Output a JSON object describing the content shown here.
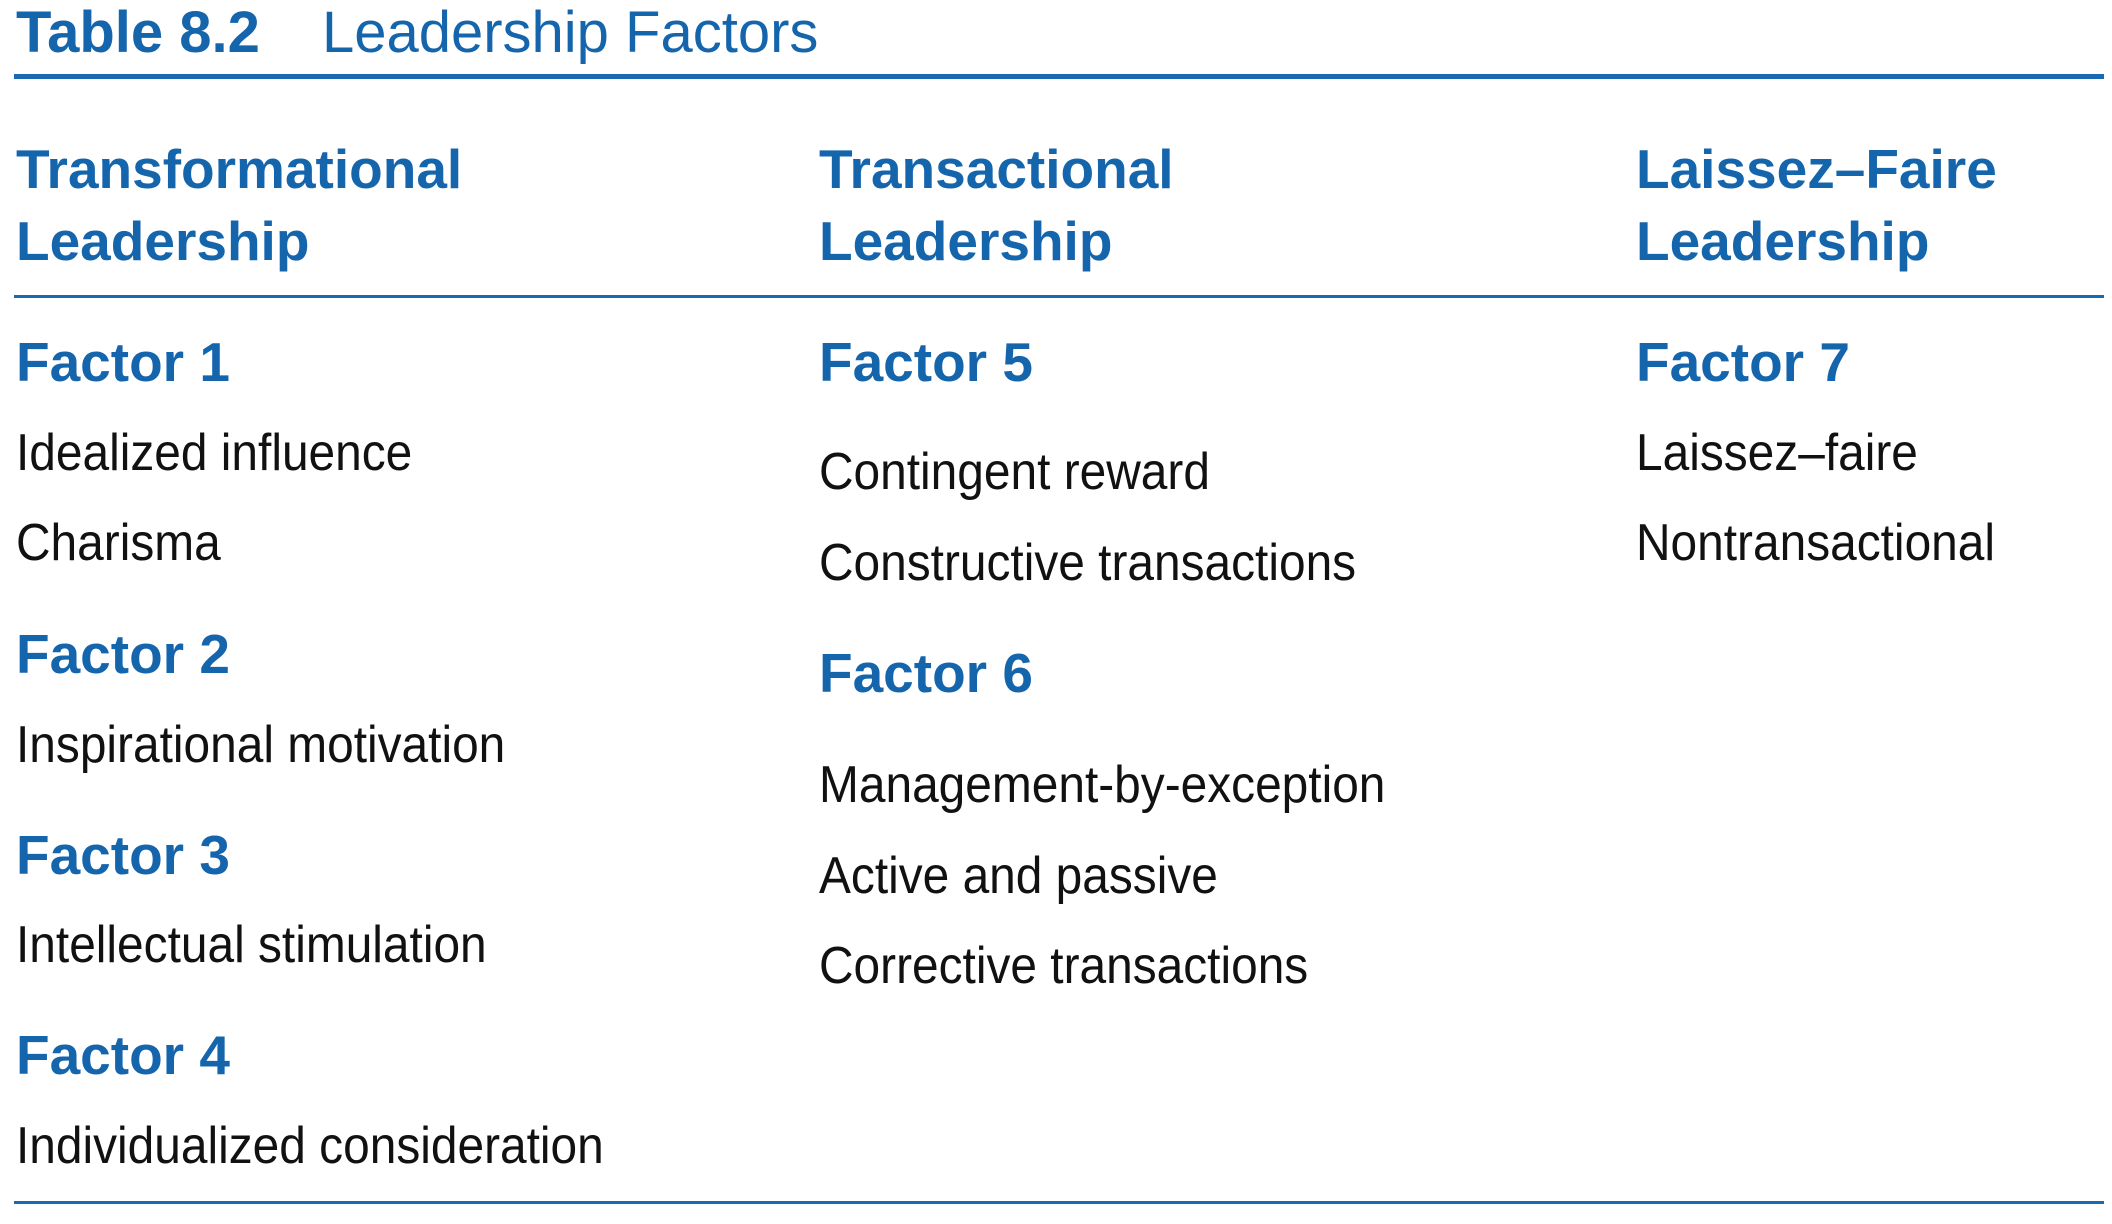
{
  "table": {
    "number": "Table 8.2",
    "title": "Leadership Factors"
  },
  "columns": [
    {
      "heading_line1": "Transformational",
      "heading_line2": "Leadership",
      "factors": [
        {
          "label": "Factor 1",
          "items": [
            "Idealized influence",
            "Charisma"
          ]
        },
        {
          "label": "Factor 2",
          "items": [
            "Inspirational motivation"
          ]
        },
        {
          "label": "Factor 3",
          "items": [
            "Intellectual stimulation"
          ]
        },
        {
          "label": "Factor 4",
          "items": [
            "Individualized consideration"
          ]
        }
      ]
    },
    {
      "heading_line1": "Transactional",
      "heading_line2": "Leadership",
      "factors": [
        {
          "label": "Factor 5",
          "items": [
            "Contingent reward",
            "Constructive transactions"
          ]
        },
        {
          "label": "Factor 6",
          "items": [
            "Management-by-exception",
            "Active and passive",
            "Corrective transactions"
          ]
        }
      ]
    },
    {
      "heading_line1": "Laissez–Faire",
      "heading_line2": "Leadership",
      "factors": [
        {
          "label": "Factor 7",
          "items": [
            "Laissez–faire",
            "Nontransactional"
          ]
        }
      ]
    }
  ],
  "colors": {
    "accent": "#1565ad",
    "rule": "#1a6ab3",
    "body_text": "#111111"
  }
}
